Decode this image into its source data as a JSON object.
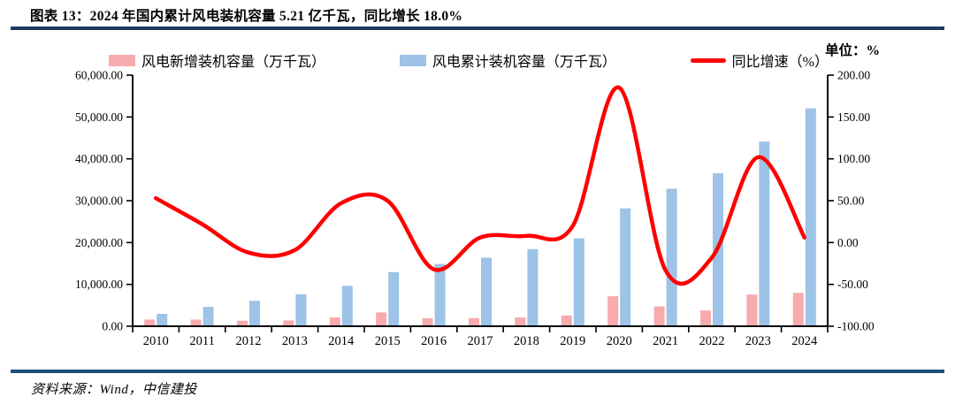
{
  "title": "图表 13：2024 年国内累计风电装机容量 5.21 亿千瓦，同比增长 18.0%",
  "unit_label": "单位：%",
  "source": "资料来源：Wind，中信建投",
  "colors": {
    "new_bar": "#F7ABAE",
    "cum_bar": "#9DC3E6",
    "growth_line": "#FE0000",
    "top_rule": "#1F3864",
    "bottom_rule": "#1F4E79",
    "axis": "#000000"
  },
  "chart_data": {
    "type": "bar+line",
    "title": "2024 年国内累计风电装机容量 5.21 亿千瓦，同比增长 18.0%",
    "categories": [
      "2010",
      "2011",
      "2012",
      "2013",
      "2014",
      "2015",
      "2016",
      "2017",
      "2018",
      "2019",
      "2020",
      "2021",
      "2022",
      "2023",
      "2024"
    ],
    "series": [
      {
        "name": "风电新增装机容量（万千瓦）",
        "type": "bar",
        "axis": "left",
        "color": "#F7ABAE",
        "values": [
          1600,
          1600,
          1300,
          1400,
          2100,
          3300,
          1930,
          1950,
          2100,
          2570,
          7170,
          4760,
          3760,
          7590,
          7980
        ]
      },
      {
        "name": "风电累计装机容量（万千瓦）",
        "type": "bar",
        "axis": "left",
        "color": "#9DC3E6",
        "values": [
          2958,
          4623,
          6083,
          7652,
          9657,
          12934,
          14864,
          16367,
          18426,
          21005,
          28153,
          32848,
          36544,
          44134,
          52068
        ]
      },
      {
        "name": "同比增速（%）",
        "type": "line",
        "axis": "right",
        "color": "#FE0000",
        "smooth": true,
        "values": [
          53,
          22,
          -12,
          -9,
          47,
          50,
          -32,
          6,
          8,
          20,
          185,
          -33,
          -18,
          102,
          6
        ]
      }
    ],
    "left_axis": {
      "min": 0,
      "max": 60000,
      "tick_labels_top_down": [
        "60,000.00",
        "50,000.00",
        "40,000.00",
        "30,000.00",
        "20,000.00",
        "10,000.00",
        "0.00"
      ]
    },
    "right_axis": {
      "min": -100,
      "max": 200,
      "tick_labels_top_down": [
        "200.00",
        "150.00",
        "100.00",
        "50.00",
        "0.00",
        "-50.00",
        "-100.00"
      ]
    },
    "grid": false,
    "legend_position": "top"
  }
}
